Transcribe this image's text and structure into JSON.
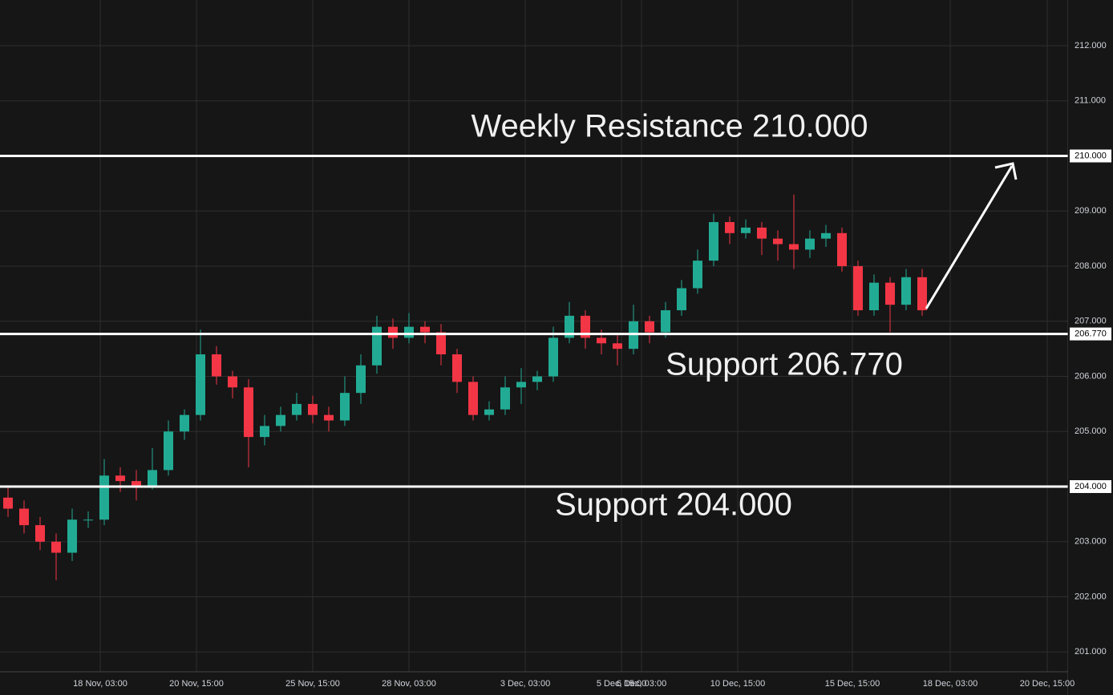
{
  "chart_data": {
    "type": "candlestick",
    "open": [
      203.8,
      203.6,
      203.3,
      203.0,
      202.8,
      203.4,
      203.4,
      204.2,
      204.1,
      204.0,
      204.3,
      205.0,
      205.3,
      206.4,
      206.0,
      205.8,
      204.9,
      205.1,
      205.3,
      205.5,
      205.3,
      205.2,
      205.7,
      206.2,
      206.9,
      206.7,
      206.9,
      206.8,
      206.4,
      205.9,
      205.3,
      205.4,
      205.8,
      205.9,
      206.0,
      206.7,
      207.1,
      206.7,
      206.6,
      206.5,
      207.0,
      206.8,
      207.2,
      207.6,
      208.1,
      208.8,
      208.6,
      208.7,
      208.5,
      208.4,
      208.3,
      208.5,
      208.6,
      208.0,
      207.2,
      207.7,
      207.3,
      207.8
    ],
    "high": [
      204.0,
      203.75,
      203.45,
      203.15,
      203.6,
      203.55,
      204.5,
      204.35,
      204.3,
      204.7,
      205.2,
      205.4,
      206.85,
      206.55,
      206.1,
      205.95,
      205.3,
      205.45,
      205.7,
      205.65,
      205.45,
      206.0,
      206.4,
      207.1,
      207.05,
      207.15,
      207.0,
      206.95,
      206.5,
      206.0,
      205.55,
      206.0,
      206.15,
      206.1,
      206.9,
      207.35,
      207.2,
      206.85,
      206.75,
      207.3,
      207.1,
      207.35,
      207.75,
      208.3,
      208.95,
      208.9,
      208.85,
      208.8,
      208.65,
      209.3,
      208.65,
      208.75,
      208.7,
      208.1,
      207.85,
      207.8,
      207.95,
      207.95
    ],
    "low": [
      203.45,
      203.15,
      202.85,
      202.3,
      202.65,
      203.25,
      203.3,
      203.9,
      203.75,
      203.95,
      204.2,
      204.85,
      205.2,
      205.85,
      205.6,
      204.35,
      204.75,
      205.0,
      205.2,
      205.15,
      205.0,
      205.1,
      205.5,
      206.05,
      206.5,
      206.6,
      206.6,
      206.2,
      205.7,
      205.2,
      205.2,
      205.3,
      205.5,
      205.75,
      205.9,
      206.6,
      206.5,
      206.4,
      206.2,
      206.4,
      206.6,
      206.7,
      207.1,
      207.5,
      208.0,
      208.4,
      208.5,
      208.2,
      208.1,
      207.95,
      208.15,
      208.35,
      207.9,
      207.1,
      207.1,
      206.8,
      207.2,
      207.1
    ],
    "close": [
      203.6,
      203.3,
      203.0,
      202.8,
      203.4,
      203.4,
      204.2,
      204.1,
      204.0,
      204.3,
      205.0,
      205.3,
      206.4,
      206.0,
      205.8,
      204.9,
      205.1,
      205.3,
      205.5,
      205.3,
      205.2,
      205.7,
      206.2,
      206.9,
      206.7,
      206.9,
      206.8,
      206.4,
      205.9,
      205.3,
      205.4,
      205.8,
      205.9,
      206.0,
      206.7,
      207.1,
      206.7,
      206.6,
      206.5,
      207.0,
      206.8,
      207.2,
      207.6,
      208.1,
      208.8,
      208.6,
      208.7,
      208.5,
      208.4,
      208.3,
      208.5,
      208.6,
      208.0,
      207.2,
      207.7,
      207.3,
      207.8,
      207.2
    ],
    "up_color": "#22ab94",
    "down_color": "#f23645",
    "ylim": [
      200.64,
      212.83
    ],
    "yticks": [
      {
        "value": 201,
        "label": "201.000"
      },
      {
        "value": 202,
        "label": "202.000"
      },
      {
        "value": 203,
        "label": "203.000"
      },
      {
        "value": 204,
        "label": "204.000"
      },
      {
        "value": 205,
        "label": "205.000"
      },
      {
        "value": 206,
        "label": "206.000"
      },
      {
        "value": 207,
        "label": "207.000"
      },
      {
        "value": 208,
        "label": "208.000"
      },
      {
        "value": 209,
        "label": "209.000"
      },
      {
        "value": 210,
        "label": "210.000"
      },
      {
        "value": 211,
        "label": "211.000"
      },
      {
        "value": 212,
        "label": "212.000"
      }
    ],
    "xlim": [
      0,
      66.6
    ],
    "xticks": [
      {
        "value": 6.25,
        "label": "18 Nov, 03:00"
      },
      {
        "value": 12.25,
        "label": "20 Nov, 15:00"
      },
      {
        "value": 19.5,
        "label": "25 Nov, 15:00"
      },
      {
        "value": 25.5,
        "label": "28 Nov, 03:00"
      },
      {
        "value": 32.75,
        "label": "3 Dec, 03:00"
      },
      {
        "value": 38.75,
        "label": "5 Dec, 15:00"
      },
      {
        "value": 40,
        "label": "6 Dec, 03:00"
      },
      {
        "value": 46,
        "label": "10 Dec, 15:00"
      },
      {
        "value": 53.15,
        "label": "15 Dec, 15:00"
      },
      {
        "value": 59.25,
        "label": "18 Dec, 03:00"
      },
      {
        "value": 65.3,
        "label": "20 Dec, 15:00"
      }
    ],
    "grid": true,
    "levels": [
      {
        "value": 210,
        "label": "210.000"
      },
      {
        "value": 206.77,
        "label": "206.770"
      },
      {
        "value": 204,
        "label": "204.000"
      }
    ],
    "annotations": [
      "Weekly Resistance 210.000",
      "Support 206.770",
      "Support 204.000"
    ]
  }
}
